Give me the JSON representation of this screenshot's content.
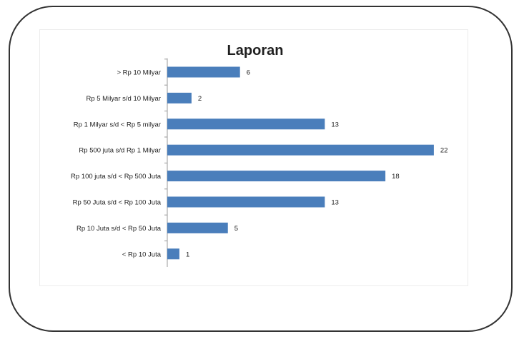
{
  "chart_data": {
    "type": "bar",
    "orientation": "horizontal",
    "title": "Laporan",
    "categories": [
      "> Rp 10 Milyar",
      "Rp 5 Milyar s/d 10 Milyar",
      "Rp 1 Milyar s/d < Rp 5 milyar",
      "Rp 500 juta s/d Rp 1 Milyar",
      "Rp 100 juta s/d < Rp 500 Juta",
      "Rp 50 Juta s/d < Rp 100 Juta",
      "Rp 10 Juta s/d < Rp 50 Juta",
      "< Rp 10 Juta"
    ],
    "values": [
      6,
      2,
      13,
      22,
      18,
      13,
      5,
      1
    ],
    "bar_color": "#4a7ebb",
    "data_labels": true,
    "grid": false,
    "legend": "none"
  }
}
